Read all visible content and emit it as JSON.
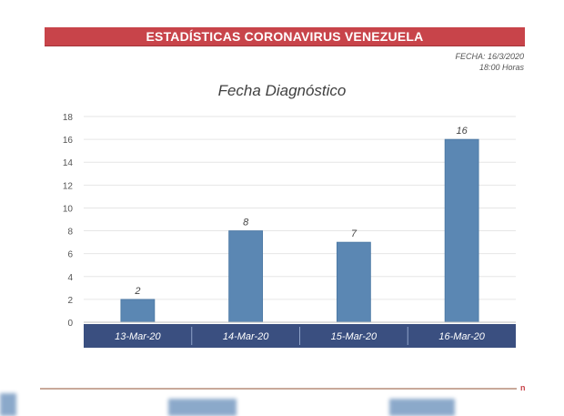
{
  "header": {
    "title": "ESTADÍSTICAS CORONAVIRUS VENEZUELA",
    "date_line": "FECHA: 16/3/2020",
    "time_line": "18:00 Horas",
    "banner_color": "#c8444a"
  },
  "footer": {
    "mark": "n"
  },
  "chart_data": {
    "type": "bar",
    "title": "Fecha Diagnóstico",
    "categories": [
      "13-Mar-20",
      "14-Mar-20",
      "15-Mar-20",
      "16-Mar-20"
    ],
    "values": [
      2,
      8,
      7,
      16
    ],
    "data_labels": [
      "2",
      "8",
      "7",
      "16"
    ],
    "xlabel": "",
    "ylabel": "",
    "ylim": [
      0,
      18
    ],
    "yticks": [
      0,
      2,
      4,
      6,
      8,
      10,
      12,
      14,
      16,
      18
    ],
    "grid": true,
    "legend": "none",
    "bar_color": "#5b87b3",
    "category_band_color": "#3a4f80"
  }
}
